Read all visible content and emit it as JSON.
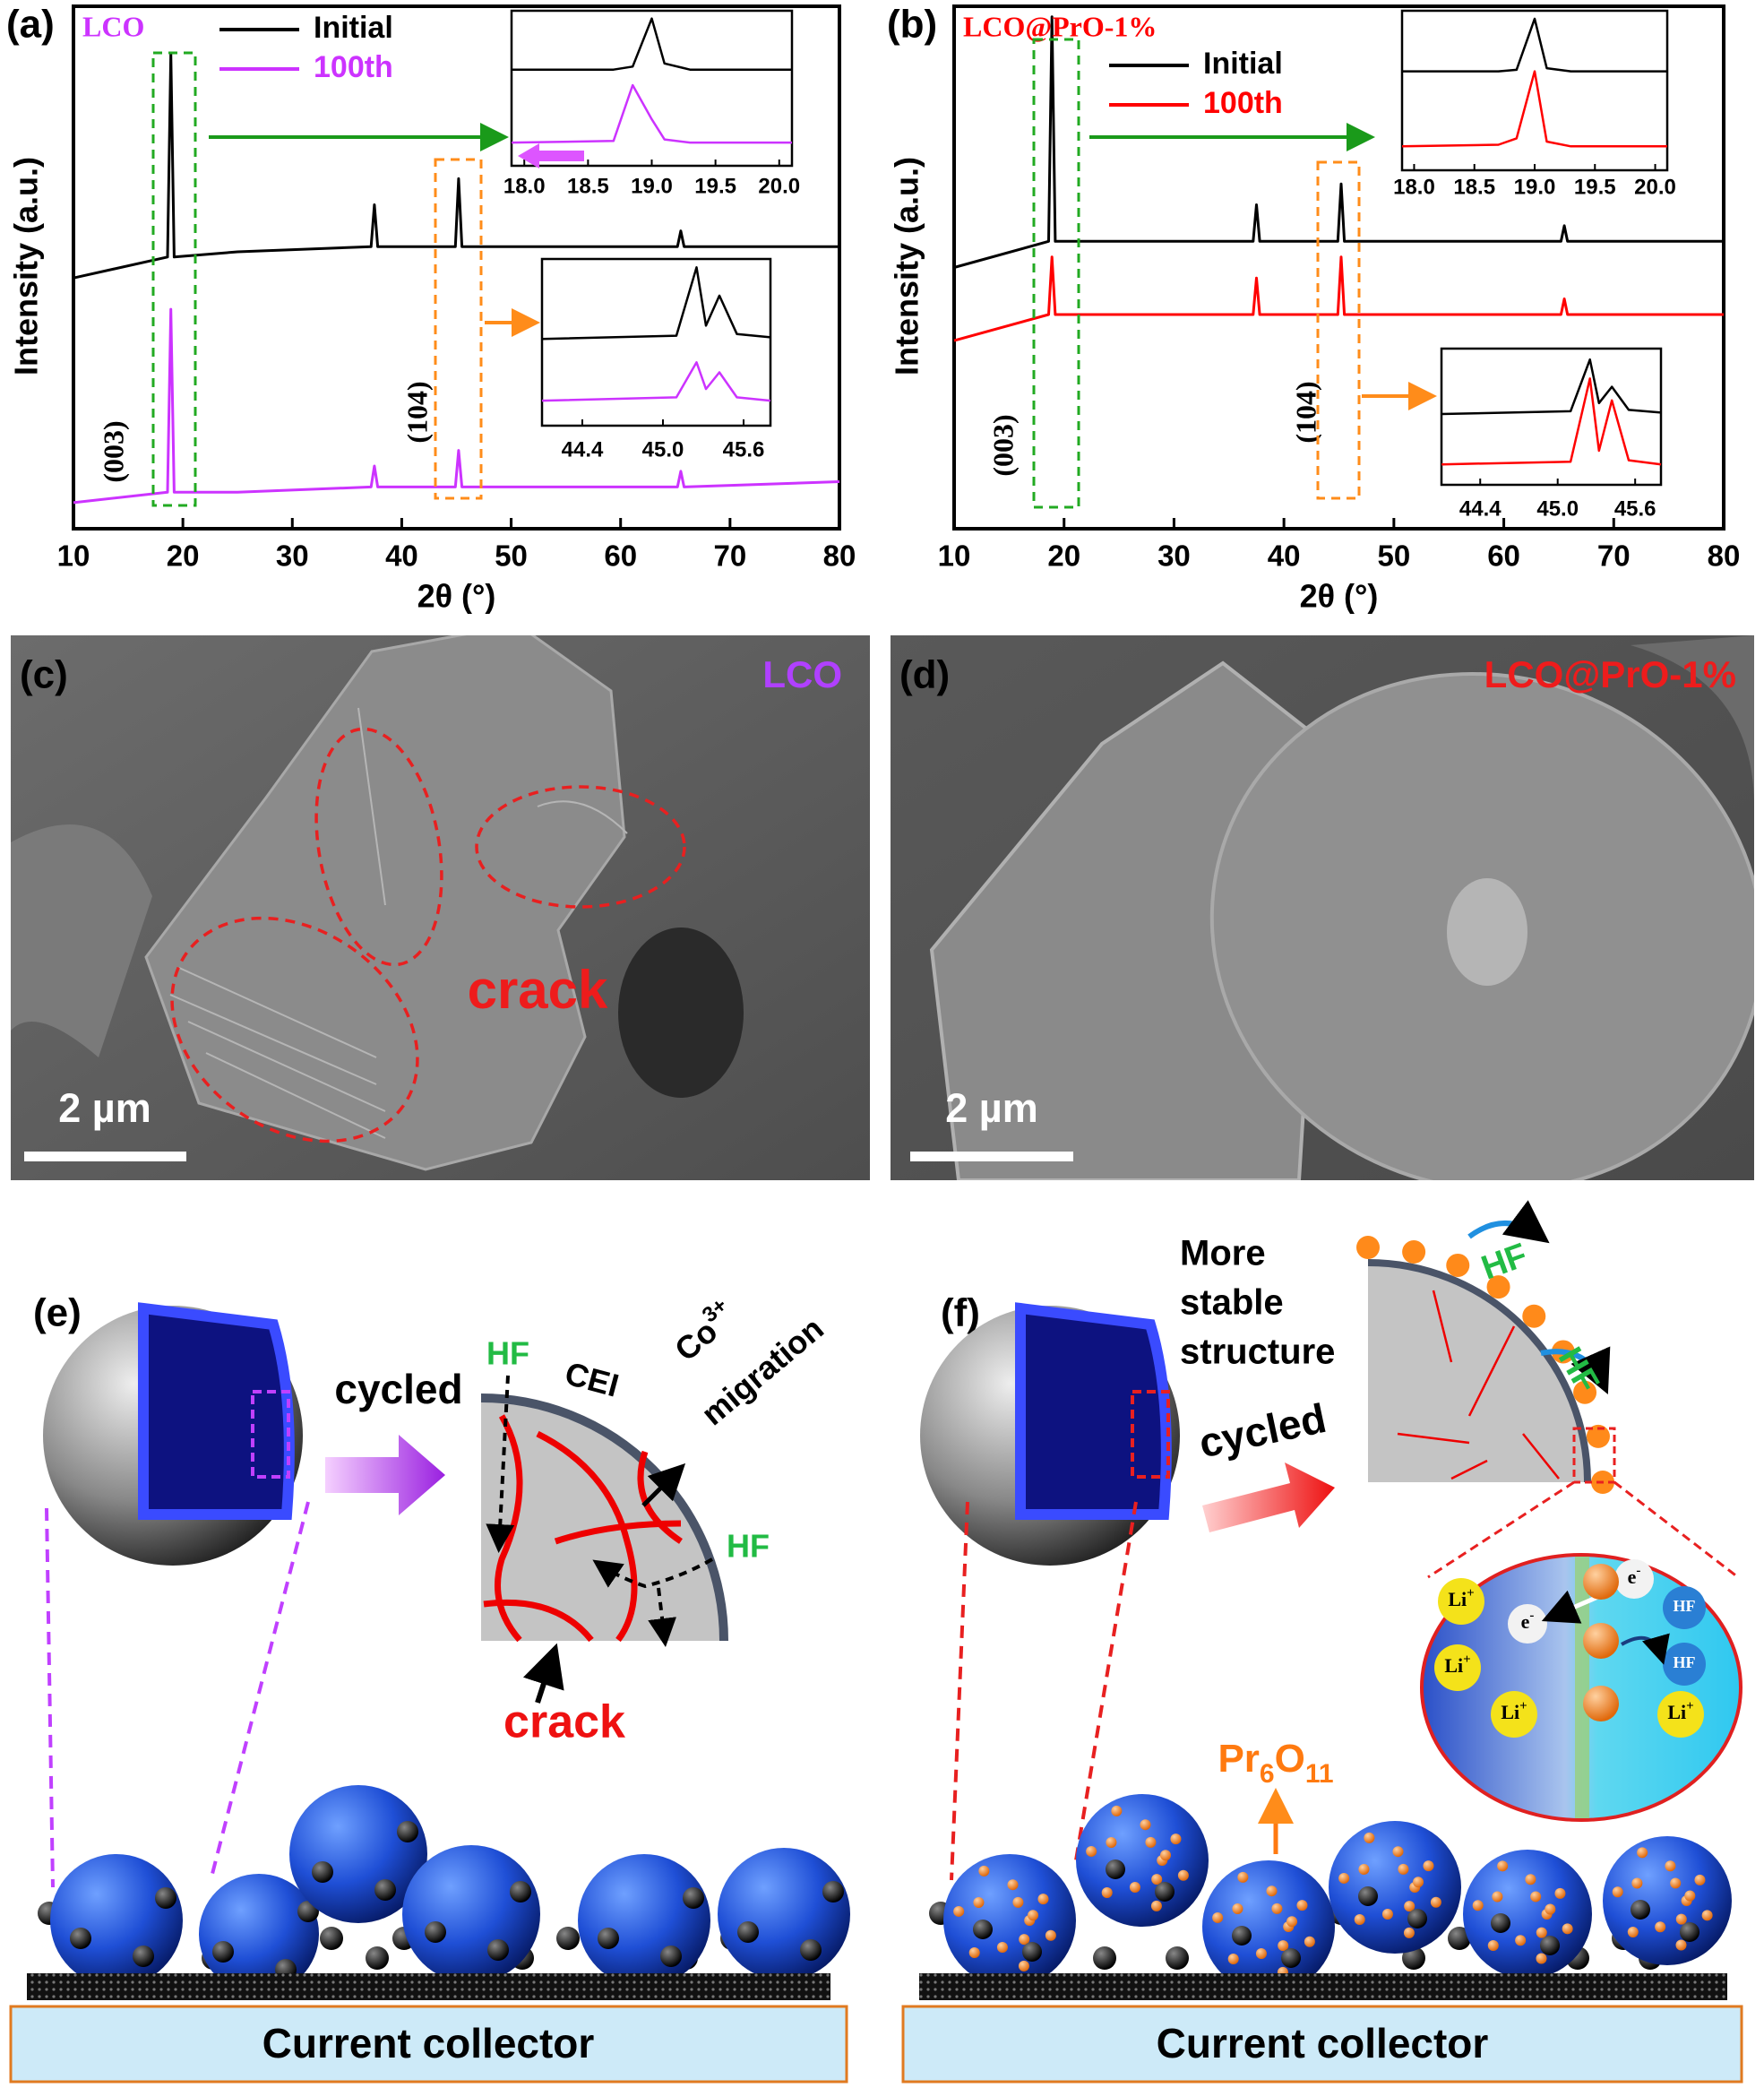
{
  "chart_data": [
    {
      "type": "line",
      "panel": "(a)",
      "sample": "LCO",
      "xlabel": "2θ (°)",
      "ylabel": "Intensity (a.u.)",
      "xlim": [
        10,
        80
      ],
      "xticks": [
        10,
        20,
        30,
        40,
        50,
        60,
        70,
        80
      ],
      "ylim": [
        0,
        100
      ],
      "peak_labels": [
        "(003)",
        "(104)"
      ],
      "x": [
        10,
        18.6,
        18.9,
        19.2,
        25,
        37.2,
        37.5,
        37.8,
        44.9,
        45.2,
        45.5,
        50,
        65.2,
        65.5,
        65.8,
        80
      ],
      "series": [
        {
          "name": "Initial",
          "color": "#000000",
          "values": [
            48,
            52,
            91,
            52,
            53,
            54,
            62,
            54,
            54,
            67,
            54,
            54,
            54,
            57,
            54,
            54
          ]
        },
        {
          "name": "100th",
          "color": "#cc33ff",
          "values": [
            5,
            7,
            42,
            7,
            7,
            8,
            12,
            8,
            8,
            15,
            8,
            8,
            8,
            11,
            8,
            9
          ]
        }
      ]
    },
    {
      "type": "line",
      "xlim": [
        17.9,
        20.1
      ],
      "xticks": [
        {
          "value": 18,
          "label": "18.0"
        },
        18.5,
        {
          "value": 19,
          "label": "19.0"
        },
        19.5,
        {
          "value": 20,
          "label": "20.0"
        }
      ],
      "ylim": [
        0,
        100
      ],
      "x": [
        17.9,
        18.7,
        18.85,
        19.0,
        19.1,
        19.3,
        20.1
      ],
      "series": [
        {
          "color": "#000000",
          "values": [
            62,
            62,
            64,
            95,
            66,
            62,
            62
          ]
        },
        {
          "color": "#cc33ff",
          "values": [
            15,
            16,
            52,
            30,
            17,
            15,
            15
          ]
        }
      ]
    },
    {
      "type": "line",
      "xlim": [
        44.1,
        45.8
      ],
      "xticks": [
        44.4,
        {
          "value": 45,
          "label": "45.0"
        },
        45.6
      ],
      "ylim": [
        0,
        100
      ],
      "x": [
        44.1,
        45.1,
        45.25,
        45.32,
        45.42,
        45.55,
        45.8
      ],
      "series": [
        {
          "color": "#000000",
          "values": [
            52,
            54,
            95,
            60,
            78,
            55,
            53
          ]
        },
        {
          "color": "#cc33ff",
          "values": [
            15,
            17,
            38,
            22,
            32,
            17,
            15
          ]
        }
      ]
    },
    {
      "type": "line",
      "panel": "(b)",
      "sample": "LCO@PrO-1%",
      "xlabel": "2θ (°)",
      "ylabel": "Intensity (a.u.)",
      "xlim": [
        10,
        80
      ],
      "xticks": [
        10,
        20,
        30,
        40,
        50,
        60,
        70,
        80
      ],
      "ylim": [
        0,
        100
      ],
      "peak_labels": [
        "(003)",
        "(104)"
      ],
      "x": [
        10,
        18.6,
        18.9,
        19.2,
        25,
        37.2,
        37.5,
        37.8,
        44.9,
        45.2,
        45.5,
        50,
        65.2,
        65.5,
        65.8,
        80
      ],
      "series": [
        {
          "name": "Initial",
          "color": "#000000",
          "values": [
            50,
            55,
            98,
            55,
            55,
            55,
            62,
            55,
            55,
            66,
            55,
            55,
            55,
            58,
            55,
            55
          ]
        },
        {
          "name": "100th",
          "color": "#ff0000",
          "values": [
            36,
            41,
            52,
            41,
            41,
            41,
            48,
            41,
            41,
            52,
            41,
            41,
            41,
            44,
            41,
            41
          ]
        }
      ]
    },
    {
      "type": "line",
      "xlim": [
        17.9,
        20.1
      ],
      "xticks": [
        {
          "value": 18,
          "label": "18.0"
        },
        18.5,
        {
          "value": 19,
          "label": "19.0"
        },
        19.5,
        {
          "value": 20,
          "label": "20.0"
        }
      ],
      "ylim": [
        0,
        100
      ],
      "x": [
        17.9,
        18.7,
        18.85,
        19.0,
        19.1,
        19.3,
        20.1
      ],
      "series": [
        {
          "color": "#000000",
          "values": [
            62,
            62,
            63,
            95,
            64,
            62,
            62
          ]
        },
        {
          "color": "#ff0000",
          "values": [
            15,
            16,
            20,
            62,
            18,
            15,
            15
          ]
        }
      ]
    },
    {
      "type": "line",
      "xlim": [
        44.1,
        45.8
      ],
      "xticks": [
        44.4,
        {
          "value": 45,
          "label": "45.0"
        },
        45.6
      ],
      "ylim": [
        0,
        100
      ],
      "x": [
        44.1,
        45.1,
        45.25,
        45.32,
        45.42,
        45.55,
        45.8
      ],
      "series": [
        {
          "color": "#000000",
          "values": [
            52,
            54,
            92,
            60,
            72,
            55,
            53
          ]
        },
        {
          "color": "#ff0000",
          "values": [
            15,
            17,
            78,
            25,
            62,
            18,
            15
          ]
        }
      ]
    }
  ],
  "panels": {
    "c": {
      "label": "(c)",
      "sample": "LCO",
      "annotation": "crack",
      "scale": "2 µm"
    },
    "d": {
      "label": "(d)",
      "sample": "LCO@PrO-1%",
      "scale": "2 µm"
    },
    "e": {
      "label": "(e)",
      "arrow": "cycled",
      "hf": [
        "HF",
        "HF"
      ],
      "cei": "CEI",
      "co": {
        "base": "Co",
        "sup": "3+"
      },
      "migration": "migration",
      "crack": "crack",
      "collector": "Current collector"
    },
    "f": {
      "label": "(f)",
      "note": [
        "More",
        "stable",
        "structure"
      ],
      "hf_out": [
        "HF",
        "HF"
      ],
      "arrow": "cycled",
      "li": [
        {
          "base": "Li",
          "sup": "+"
        },
        {
          "base": "Li",
          "sup": "+"
        },
        {
          "base": "Li",
          "sup": "+"
        },
        {
          "base": "Li",
          "sup": "+"
        }
      ],
      "electron": [
        {
          "base": "e",
          "sup": "-"
        },
        {
          "base": "e",
          "sup": "-"
        }
      ],
      "hf_in": [
        "HF",
        "HF"
      ],
      "oxide": [
        "Pr",
        "6",
        "O",
        "11"
      ],
      "collector": "Current collector"
    }
  }
}
